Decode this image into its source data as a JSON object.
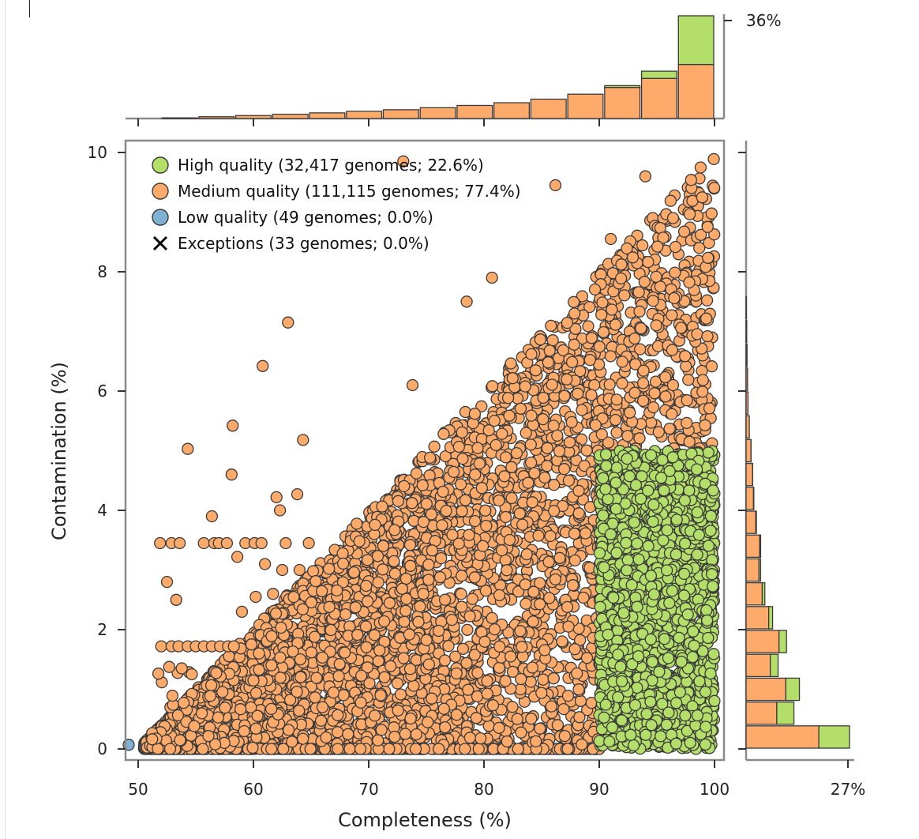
{
  "colors": {
    "high": "#b3de69",
    "medium": "#fdaa6b",
    "low": "#80b1d3",
    "edge": "#3a3a3a",
    "frame": "#8a8a8a"
  },
  "chart_data": {
    "type": "scatter",
    "xlabel": "Completeness (%)",
    "ylabel": "Contamination (%)",
    "xlim": [
      49,
      100.5
    ],
    "ylim": [
      -0.3,
      10.2
    ],
    "x_ticks": [
      "50",
      "60",
      "70",
      "80",
      "90",
      "100"
    ],
    "y_ticks": [
      "0",
      "2",
      "4",
      "6",
      "8",
      "10"
    ],
    "grid": false,
    "legend_position": "top-left",
    "legend": [
      {
        "marker": "circle",
        "color": "#b3de69",
        "label": "High quality (32,417 genomes; 22.6%)"
      },
      {
        "marker": "circle",
        "color": "#fdaa6b",
        "label": "Medium quality (111,115 genomes; 77.4%)"
      },
      {
        "marker": "circle",
        "color": "#80b1d3",
        "label": "Low quality (49 genomes; 0.0%)"
      },
      {
        "marker": "cross",
        "color": "#000000",
        "label": "Exceptions (33 genomes; 0.0%)"
      }
    ],
    "series": [
      {
        "name": "High quality",
        "region": {
          "x": [
            90,
            100
          ],
          "y": [
            0,
            5
          ]
        }
      },
      {
        "name": "Medium quality",
        "region_note": "contamination up to completeness / 10"
      },
      {
        "name": "Low quality",
        "points": [
          [
            49.3,
            0.07
          ]
        ]
      }
    ],
    "medium_outliers": [
      [
        73,
        9.85
      ],
      [
        80.7,
        7.9
      ],
      [
        78.5,
        7.5
      ],
      [
        63,
        7.15
      ],
      [
        60.8,
        6.42
      ],
      [
        73.8,
        6.1
      ],
      [
        58.2,
        5.42
      ],
      [
        64.3,
        5.18
      ],
      [
        54.3,
        5.03
      ],
      [
        58.1,
        4.6
      ],
      [
        63.8,
        4.27
      ],
      [
        62,
        4.22
      ],
      [
        62.3,
        4.0
      ],
      [
        56.4,
        3.9
      ],
      [
        94,
        9.6
      ],
      [
        86.2,
        9.45
      ],
      [
        91,
        8.55
      ],
      [
        52.5,
        2.8
      ],
      [
        61.7,
        2.6
      ],
      [
        60.2,
        2.55
      ],
      [
        59,
        2.3
      ],
      [
        53.3,
        2.5
      ],
      [
        58.6,
        3.22
      ],
      [
        61,
        3.1
      ],
      [
        62.5,
        3.0
      ],
      [
        64,
        3.0
      ]
    ],
    "medium_row_3_45": [
      51.9,
      52.9,
      53.6,
      55.7,
      56.6,
      57.0,
      57.7,
      59.3,
      60.1,
      60.7,
      62.8,
      64.8
    ],
    "medium_row_1_72": [
      52.0,
      52.9,
      53.5,
      54.3,
      55.0,
      55.7,
      56.4,
      57.1,
      57.8,
      58.3
    ],
    "top_histogram": {
      "orientation": "vertical",
      "tick_label": "36%",
      "bin_edges": [
        52,
        55.2,
        58.4,
        61.6,
        64.8,
        68,
        71.2,
        74.4,
        77.6,
        80.8,
        84,
        87.2,
        90.4,
        93.6,
        96.8,
        100
      ],
      "medium": [
        0.3,
        0.8,
        1.3,
        1.9,
        2.5,
        3.2,
        3.9,
        4.8,
        5.8,
        7.0,
        8.6,
        10.8,
        13.8,
        17.8,
        24.0
      ],
      "high": [
        0,
        0,
        0,
        0,
        0,
        0,
        0,
        0,
        0,
        0,
        0,
        0,
        0.8,
        3.2,
        21.6
      ],
      "max": 45.6
    },
    "right_histogram": {
      "orientation": "horizontal",
      "tick_label": "27%",
      "bin_edges": [
        0,
        0.4,
        0.8,
        1.2,
        1.6,
        2.0,
        2.4,
        2.8,
        3.2,
        3.6,
        4.0,
        4.4,
        4.8,
        5.2,
        5.6,
        6.0,
        6.4,
        6.8,
        7.2,
        7.6
      ],
      "medium": [
        22.5,
        9.5,
        12.3,
        7.5,
        10.2,
        7.0,
        5.0,
        4.0,
        4.2,
        3.0,
        2.3,
        2.0,
        1.5,
        1.0,
        0.6,
        0.45,
        0.3,
        0.2,
        0.1
      ],
      "high": [
        9.5,
        5.3,
        4.2,
        2.4,
        2.3,
        1.2,
        0.8,
        0.5,
        0.3,
        0.2,
        0.1,
        0.05,
        0.03,
        0,
        0,
        0,
        0,
        0,
        0
      ],
      "max": 32
    }
  }
}
